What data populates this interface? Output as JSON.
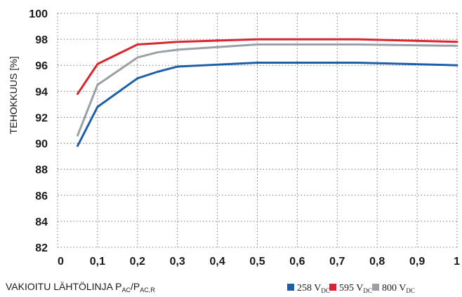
{
  "chart_data": {
    "type": "line",
    "ylabel": "TEHOKKUUS [%]",
    "xlabel": {
      "main": "VAKIOITU LÄHTÖLINJA P",
      "sub1": "AC",
      "mid": "/P",
      "sub2": "AC,R"
    },
    "xlim": [
      0,
      1
    ],
    "ylim": [
      82,
      100
    ],
    "x_ticks": [
      "0",
      "0,1",
      "0,2",
      "0,3",
      "0,4",
      "0,5",
      "0,6",
      "0,7",
      "0,8",
      "0,9",
      "1"
    ],
    "y_ticks": [
      "82",
      "84",
      "86",
      "88",
      "90",
      "92",
      "94",
      "96",
      "98",
      "100"
    ],
    "grid": true,
    "legend_position": "bottom-right",
    "series": [
      {
        "name": "258 V",
        "name_sub": "DC",
        "color": "#1f5fa8",
        "x": [
          0.05,
          0.1,
          0.2,
          0.25,
          0.3,
          0.5,
          0.75,
          1.0
        ],
        "values": [
          89.8,
          92.8,
          95.0,
          95.5,
          95.9,
          96.2,
          96.2,
          96.0
        ]
      },
      {
        "name": "595 V",
        "name_sub": "DC",
        "color": "#d7262f",
        "x": [
          0.05,
          0.1,
          0.2,
          0.25,
          0.3,
          0.5,
          0.75,
          1.0
        ],
        "values": [
          93.8,
          96.1,
          97.6,
          97.7,
          97.8,
          98.0,
          98.0,
          97.8
        ]
      },
      {
        "name": "800 V",
        "name_sub": "DC",
        "color": "#9aa0a6",
        "x": [
          0.05,
          0.1,
          0.2,
          0.25,
          0.3,
          0.5,
          0.75,
          1.0
        ],
        "values": [
          90.6,
          94.5,
          96.6,
          97.0,
          97.2,
          97.6,
          97.6,
          97.5
        ]
      }
    ]
  }
}
